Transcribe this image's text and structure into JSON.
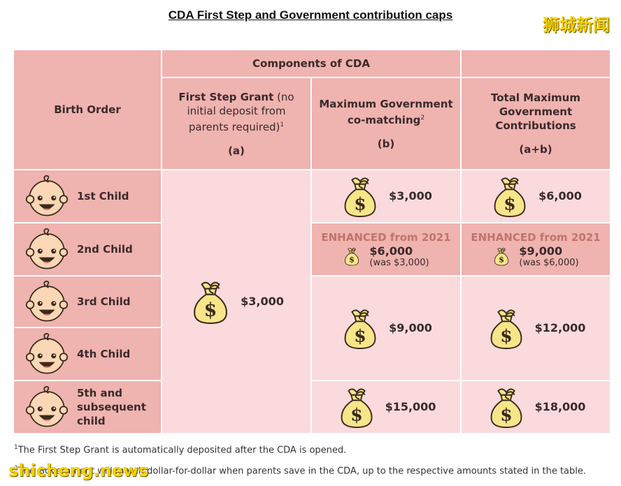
{
  "title": "CDA First Step and Government contribution caps",
  "watermark_top": "狮城新闻",
  "watermark_bottom": "shicheng.news",
  "header": {
    "components": "Components of CDA",
    "birth_order": "Birth Order",
    "col_a_main": "First Step Grant",
    "col_a_rest": " (no initial deposit from parents required)",
    "col_a_sup": "1",
    "col_a_code": "(a)",
    "col_b_main": "Maximum Government co-matching",
    "col_b_sup": "2",
    "col_b_code": "(b)",
    "col_c_main": "Total Maximum Government Contributions",
    "col_c_code": "(a+b)"
  },
  "rows": [
    {
      "label": "1st Child",
      "matching": "$3,000",
      "total": "$6,000"
    },
    {
      "label": "2nd Child",
      "enhanced_title": "ENHANCED from 2021",
      "matching": "$6,000",
      "matching_was": "(was $3,000)",
      "total": "$9,000",
      "total_was": "(was $6,000)"
    },
    {
      "label": "3rd Child"
    },
    {
      "label": "4th Child"
    },
    {
      "label": "5th and subsequent child",
      "matching": "$15,000",
      "total": "$18,000"
    }
  ],
  "grant_amount": "$3,000",
  "rows34_matching": "$9,000",
  "rows34_total": "$12,000",
  "dollar_sign": "$",
  "footnote1_sup": "1",
  "footnote1": "The First Step Grant is automatically deposited after the CDA is opened.",
  "footnote2_sup": "2",
  "footnote2": "The Government will match dollar-for-dollar when parents save in the CDA, up to the respective amounts stated in the table.",
  "colors": {
    "dark_cell": "#efb3b0",
    "light_cell": "#fadadd",
    "enhanced_text": "#c0746a",
    "bag": "#f7e58a",
    "face": "#fbd7b6"
  }
}
